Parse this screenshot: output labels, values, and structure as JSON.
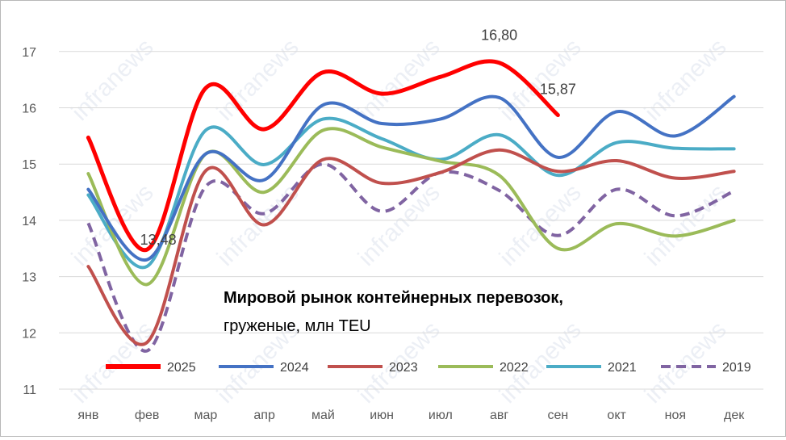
{
  "chart_data": {
    "type": "line",
    "title": "Мировой рынок контейнерных перевозок,",
    "subtitle": "груженые, млн TEU",
    "watermark": "infranews",
    "categories": [
      "янв",
      "фев",
      "мар",
      "апр",
      "май",
      "июн",
      "июл",
      "авг",
      "сен",
      "окт",
      "ноя",
      "дек"
    ],
    "yticks": [
      "11",
      "12",
      "13",
      "14",
      "15",
      "16",
      "17"
    ],
    "ylim": [
      11,
      17.4
    ],
    "grid": true,
    "legend_position": "bottom",
    "series": [
      {
        "name": "2025",
        "color": "#ff0000",
        "dashed": false,
        "width": 5,
        "values": [
          15.47,
          13.48,
          16.35,
          15.62,
          16.63,
          16.25,
          16.55,
          16.8,
          15.87,
          null,
          null,
          null
        ]
      },
      {
        "name": "2024",
        "color": "#4472c4",
        "dashed": false,
        "width": 4,
        "values": [
          14.55,
          13.3,
          15.18,
          14.72,
          16.05,
          15.72,
          15.8,
          16.18,
          15.12,
          15.93,
          15.5,
          16.2
        ]
      },
      {
        "name": "2023",
        "color": "#c0504d",
        "dashed": false,
        "width": 4,
        "values": [
          13.18,
          11.83,
          14.88,
          13.92,
          15.08,
          14.66,
          14.85,
          15.25,
          14.87,
          15.06,
          14.75,
          14.87
        ]
      },
      {
        "name": "2022",
        "color": "#9bbb59",
        "dashed": false,
        "width": 4,
        "values": [
          14.83,
          12.86,
          15.18,
          14.5,
          15.6,
          15.3,
          15.05,
          14.8,
          13.5,
          13.94,
          13.72,
          14.0
        ]
      },
      {
        "name": "2021",
        "color": "#4bacc6",
        "dashed": false,
        "width": 4,
        "values": [
          14.45,
          13.18,
          15.6,
          14.99,
          15.8,
          15.45,
          15.08,
          15.52,
          14.8,
          15.38,
          15.28,
          15.27
        ]
      },
      {
        "name": "2019",
        "color": "#8064a2",
        "dashed": true,
        "width": 4,
        "values": [
          13.95,
          11.68,
          14.6,
          14.12,
          15.0,
          14.16,
          14.85,
          14.53,
          13.73,
          14.55,
          14.08,
          14.52
        ]
      }
    ],
    "data_labels": [
      {
        "series": "2025",
        "index": 1,
        "text": "13,48"
      },
      {
        "series": "2025",
        "index": 7,
        "text": "16,80"
      },
      {
        "series": "2025",
        "index": 8,
        "text": "15,87"
      }
    ]
  }
}
